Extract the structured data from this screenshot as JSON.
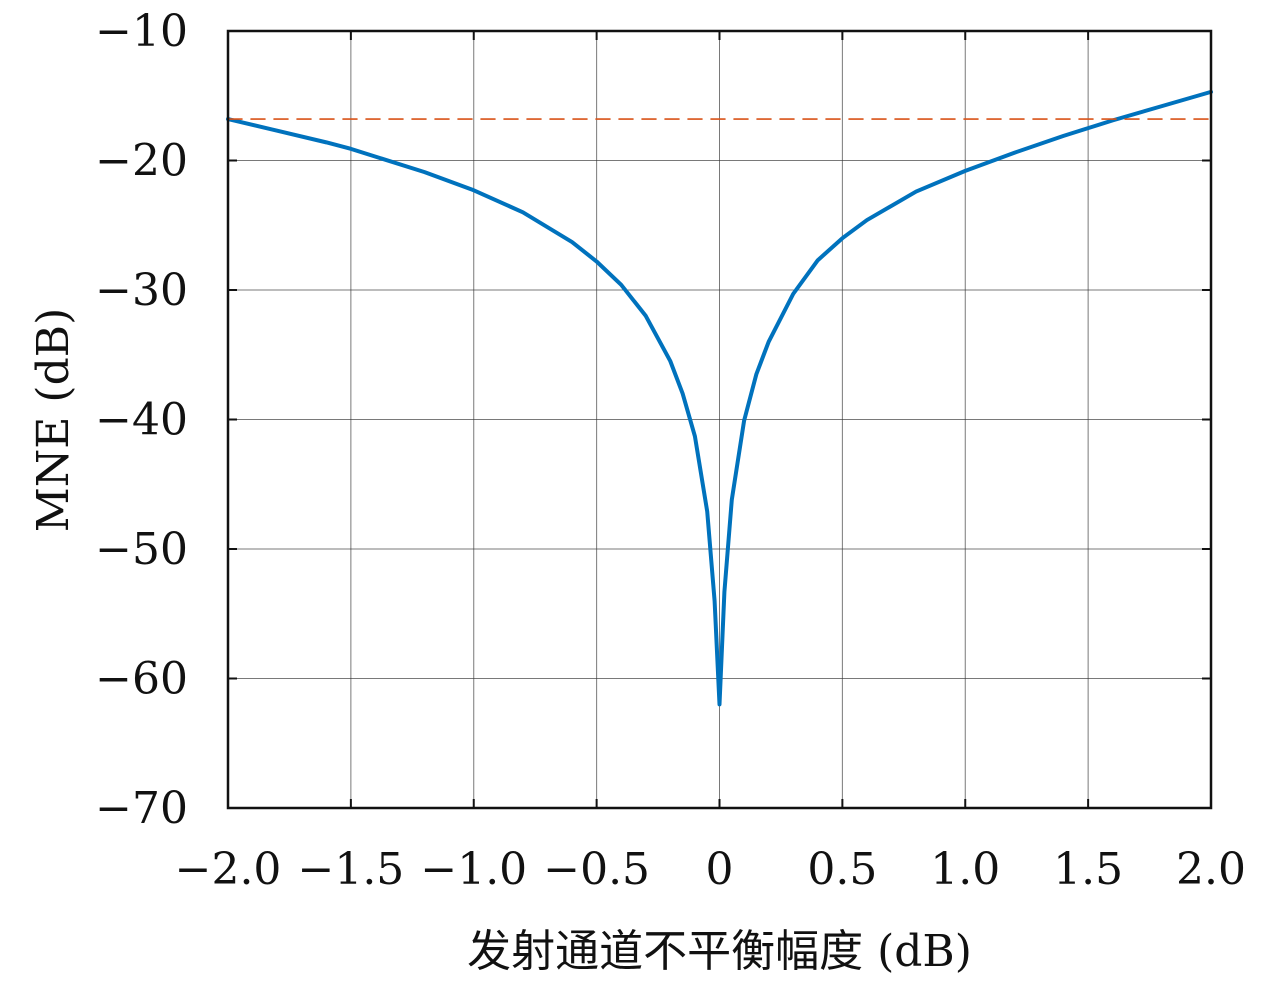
{
  "chart_data": {
    "type": "line",
    "title": "",
    "xlabel": "发射通道不平衡幅度 (dB)",
    "ylabel": "MNE (dB)",
    "xlim": [
      -2.0,
      2.0
    ],
    "ylim": [
      -70,
      -10
    ],
    "x_ticks": [
      -2.0,
      -1.5,
      -1.0,
      -0.5,
      0,
      0.5,
      1.0,
      1.5,
      2.0
    ],
    "x_tick_labels": [
      "−2.0",
      "−1.5",
      "−1.0",
      "−0.5",
      "0",
      "0.5",
      "1.0",
      "1.5",
      "2.0"
    ],
    "y_ticks": [
      -10,
      -20,
      -30,
      -40,
      -50,
      -60,
      -70
    ],
    "y_tick_labels": [
      "−10",
      "−20",
      "−30",
      "−40",
      "−50",
      "−60",
      "−70"
    ],
    "grid": true,
    "series": [
      {
        "style": "solid",
        "color": "#0072bd",
        "x": [
          -2.0,
          -1.8,
          -1.6,
          -1.5,
          -1.4,
          -1.2,
          -1.0,
          -0.8,
          -0.6,
          -0.5,
          -0.4,
          -0.3,
          -0.2,
          -0.15,
          -0.1,
          -0.05,
          -0.02,
          0.0,
          0.02,
          0.05,
          0.1,
          0.15,
          0.2,
          0.3,
          0.4,
          0.5,
          0.6,
          0.8,
          1.0,
          1.2,
          1.4,
          1.5,
          1.6,
          1.8,
          2.0
        ],
        "y": [
          -16.8,
          -17.7,
          -18.6,
          -19.1,
          -19.7,
          -20.9,
          -22.3,
          -24.0,
          -26.3,
          -27.8,
          -29.6,
          -32.0,
          -35.5,
          -38.0,
          -41.3,
          -47.1,
          -54.0,
          -62.0,
          -53.3,
          -46.2,
          -40.1,
          -36.5,
          -34.0,
          -30.3,
          -27.7,
          -26.0,
          -24.6,
          -22.4,
          -20.8,
          -19.4,
          -18.1,
          -17.5,
          -16.9,
          -15.8,
          -14.7
        ]
      },
      {
        "style": "dashed",
        "color": "#d95319",
        "x": [
          -2.0,
          2.0
        ],
        "y": [
          -16.8,
          -16.8
        ]
      }
    ]
  }
}
